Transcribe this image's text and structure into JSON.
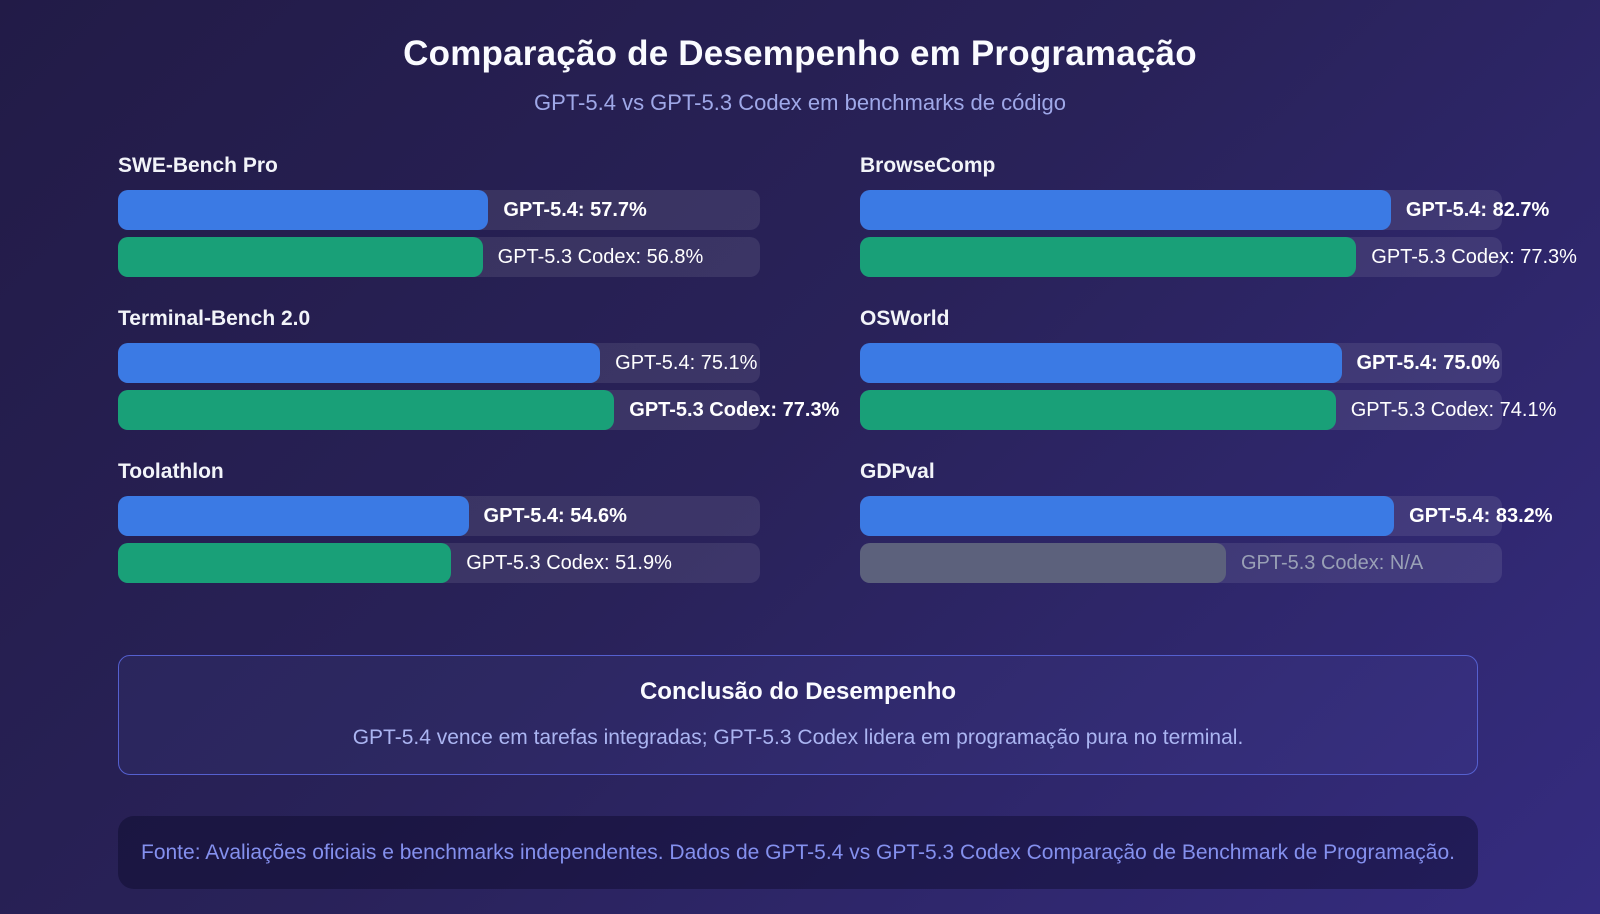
{
  "header": {
    "title": "Comparação de Desempenho em Programação",
    "subtitle": "GPT-5.4 vs GPT-5.3 Codex em benchmarks de código"
  },
  "colors": {
    "gpt54_bar": "#3B7AE4",
    "gpt53_bar": "#19A078",
    "na_bar": "#5C617C",
    "track": "rgba(255,255,255,0.09)",
    "accent_border": "#5560CF",
    "subtitle_text": "#9FA8E8",
    "footer_text": "#8490EE",
    "background_start": "#221B47",
    "background_end": "#352C80"
  },
  "chart_data": {
    "type": "bar",
    "orientation": "horizontal-grouped",
    "unit": "%",
    "value_range": [
      0,
      100
    ],
    "legend_position": "inline-labels",
    "grid": false,
    "title": "Comparação de Desempenho em Programação",
    "subtitle": "GPT-5.4 vs GPT-5.3 Codex em benchmarks de código",
    "series": [
      {
        "name": "GPT-5.4",
        "color": "#3B7AE4"
      },
      {
        "name": "GPT-5.3 Codex",
        "color": "#19A078"
      }
    ],
    "groups": [
      {
        "name": "SWE-Bench Pro",
        "values": [
          57.7,
          56.8
        ],
        "labels": [
          "GPT-5.4: 57.7%",
          "GPT-5.3 Codex: 56.8%"
        ],
        "winner_index": 0
      },
      {
        "name": "BrowseComp",
        "values": [
          82.7,
          77.3
        ],
        "labels": [
          "GPT-5.4: 82.7%",
          "GPT-5.3 Codex: 77.3%"
        ],
        "winner_index": 0
      },
      {
        "name": "Terminal-Bench 2.0",
        "values": [
          75.1,
          77.3
        ],
        "labels": [
          "GPT-5.4: 75.1%",
          "GPT-5.3 Codex: 77.3%"
        ],
        "winner_index": 1
      },
      {
        "name": "OSWorld",
        "values": [
          75.0,
          74.1
        ],
        "labels": [
          "GPT-5.4: 75.0%",
          "GPT-5.3 Codex: 74.1%"
        ],
        "winner_index": 0
      },
      {
        "name": "Toolathlon",
        "values": [
          54.6,
          51.9
        ],
        "labels": [
          "GPT-5.4: 54.6%",
          "GPT-5.3 Codex: 51.9%"
        ],
        "winner_index": 0
      },
      {
        "name": "GDPval",
        "values": [
          83.2,
          null
        ],
        "labels": [
          "GPT-5.4: 83.2%",
          "GPT-5.3 Codex: N/A"
        ],
        "winner_index": 0,
        "na_fill_pct": 57
      }
    ]
  },
  "conclusion": {
    "title": "Conclusão do Desempenho",
    "body": "GPT-5.4 vence em tarefas integradas; GPT-5.3 Codex lidera em programação pura no terminal."
  },
  "footer": {
    "text": "Fonte: Avaliações oficiais e benchmarks independentes. Dados de GPT-5.4 vs GPT-5.3 Codex Comparação de Benchmark de Programação."
  }
}
